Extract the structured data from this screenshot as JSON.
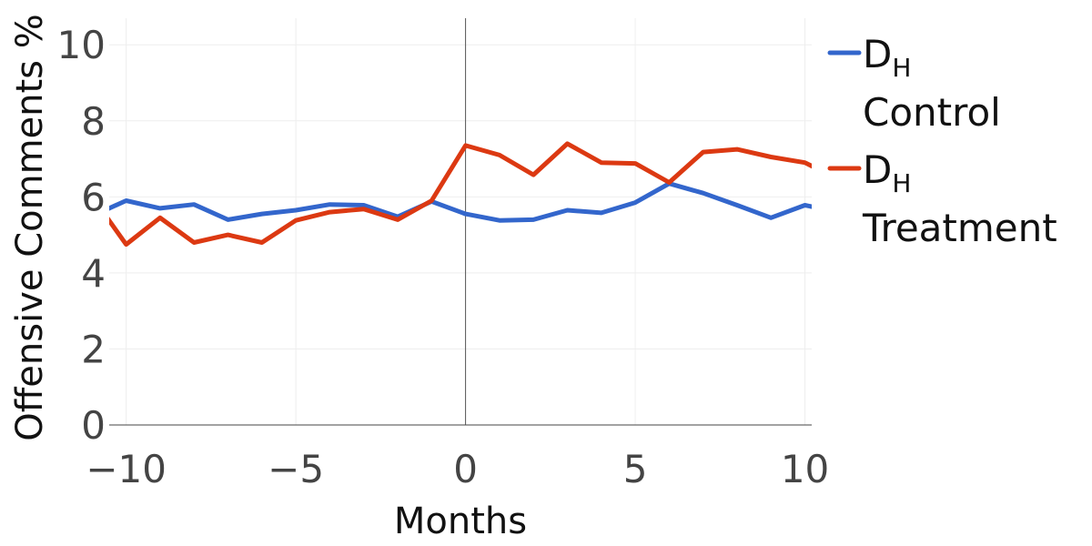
{
  "chart_data": {
    "type": "line",
    "title": "",
    "xlabel": "Months",
    "ylabel": "Offensive Comments %",
    "xlim": [
      -10.5,
      10.2
    ],
    "ylim": [
      0,
      10.7
    ],
    "xticks": [
      -10,
      -5,
      0,
      5,
      10
    ],
    "xtick_labels": [
      "−10",
      "−5",
      "0",
      "5",
      "10"
    ],
    "yticks": [
      0,
      2,
      4,
      6,
      8,
      10
    ],
    "ytick_labels": [
      "0",
      "2",
      "4",
      "6",
      "8",
      "10"
    ],
    "grid": true,
    "vertical_reference_line_x": 0,
    "legend_position": "right",
    "x": [
      -11,
      -10,
      -9,
      -8,
      -7,
      -6,
      -5,
      -4,
      -3,
      -2,
      -1,
      0,
      1,
      2,
      3,
      4,
      5,
      6,
      7,
      8,
      9,
      10,
      11
    ],
    "series": [
      {
        "name_main": "D",
        "name_sub": "H",
        "name_line2": "Control",
        "color": "#3366cc",
        "values": [
          5.5,
          5.9,
          5.7,
          5.8,
          5.4,
          5.55,
          5.65,
          5.8,
          5.78,
          5.48,
          5.88,
          5.55,
          5.38,
          5.4,
          5.65,
          5.58,
          5.85,
          6.35,
          6.1,
          5.78,
          5.45,
          5.78,
          5.6
        ]
      },
      {
        "name_main": "D",
        "name_sub": "H",
        "name_line2": "Treatment",
        "color": "#dc3912",
        "values": [
          6.0,
          4.75,
          5.45,
          4.8,
          5.0,
          4.8,
          5.38,
          5.6,
          5.68,
          5.4,
          5.9,
          7.35,
          7.1,
          6.58,
          7.4,
          6.9,
          6.88,
          6.38,
          7.18,
          7.25,
          7.05,
          6.9,
          6.45
        ]
      }
    ]
  }
}
